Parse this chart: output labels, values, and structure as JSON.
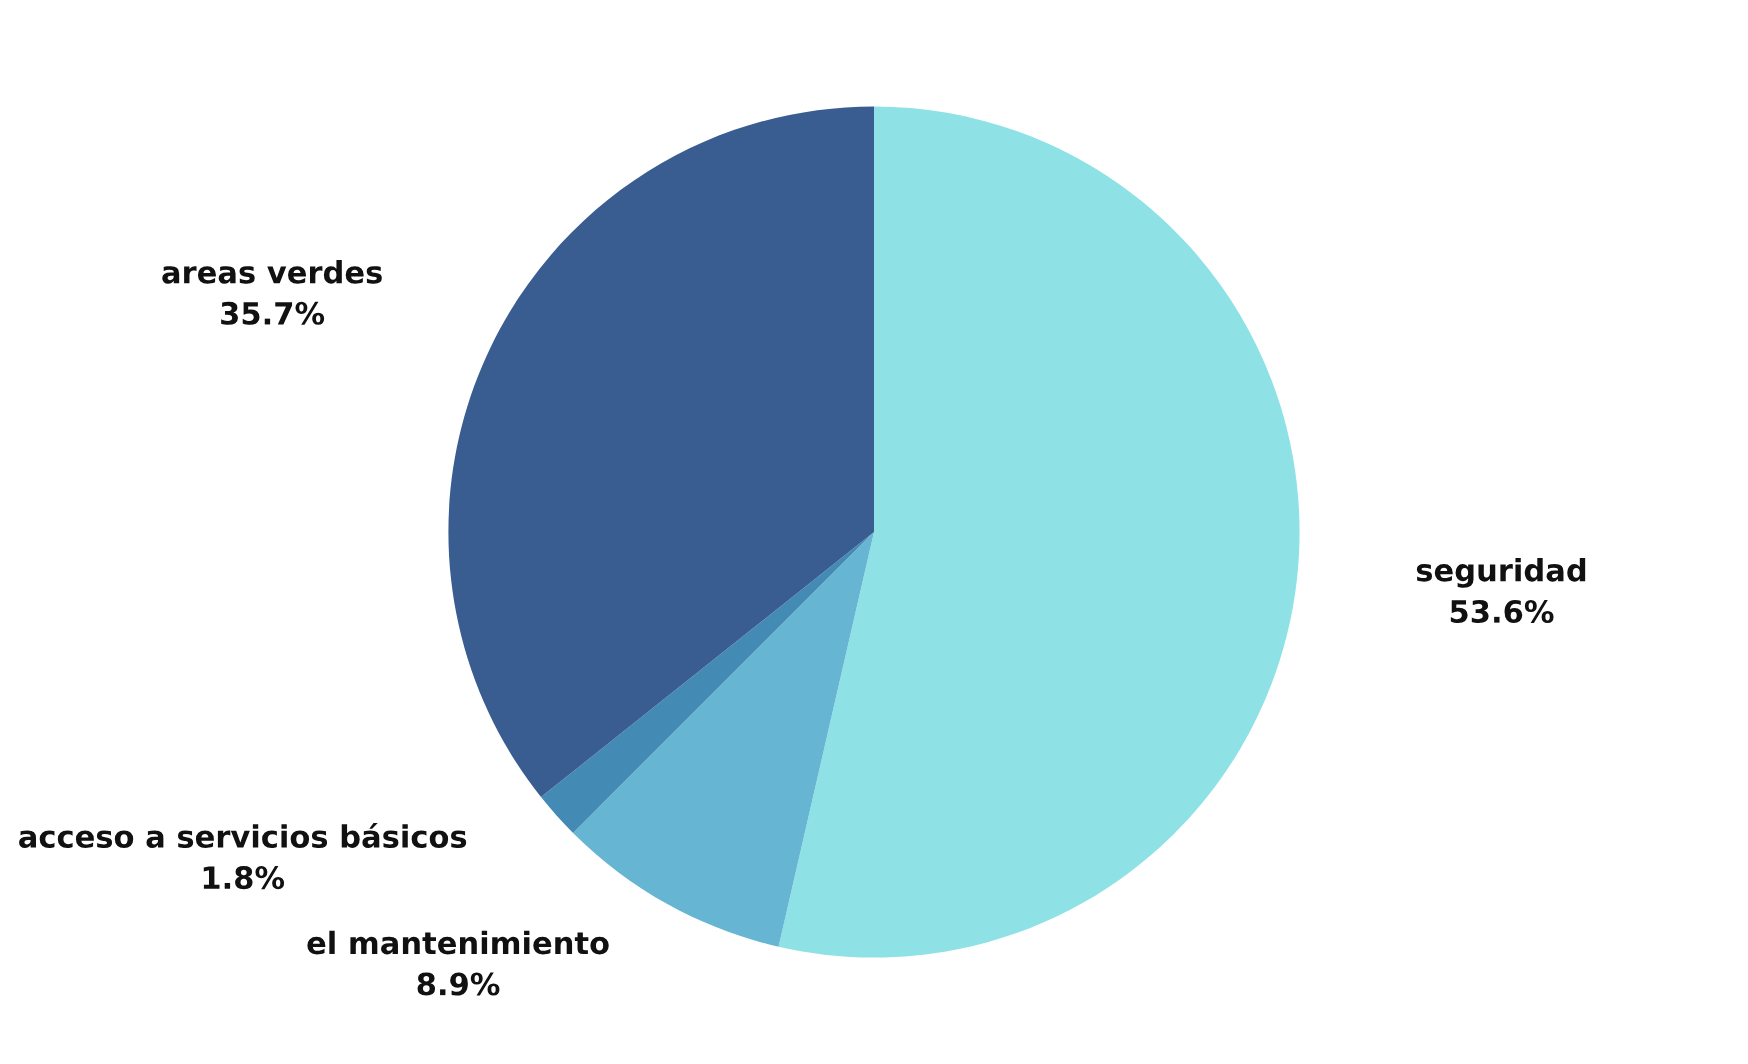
{
  "chart_data": {
    "type": "pie",
    "categories": [
      "seguridad",
      "el mantenimiento",
      "acceso a servicios básicos",
      "areas verdes"
    ],
    "values": [
      53.6,
      8.9,
      1.8,
      35.7
    ],
    "value_labels": [
      "53.6%",
      "8.9%",
      "1.8%",
      "35.7%"
    ],
    "colors": [
      "#8ee2e6",
      "#66b5d2",
      "#438ab5",
      "#3a5d91"
    ],
    "legend": false
  }
}
